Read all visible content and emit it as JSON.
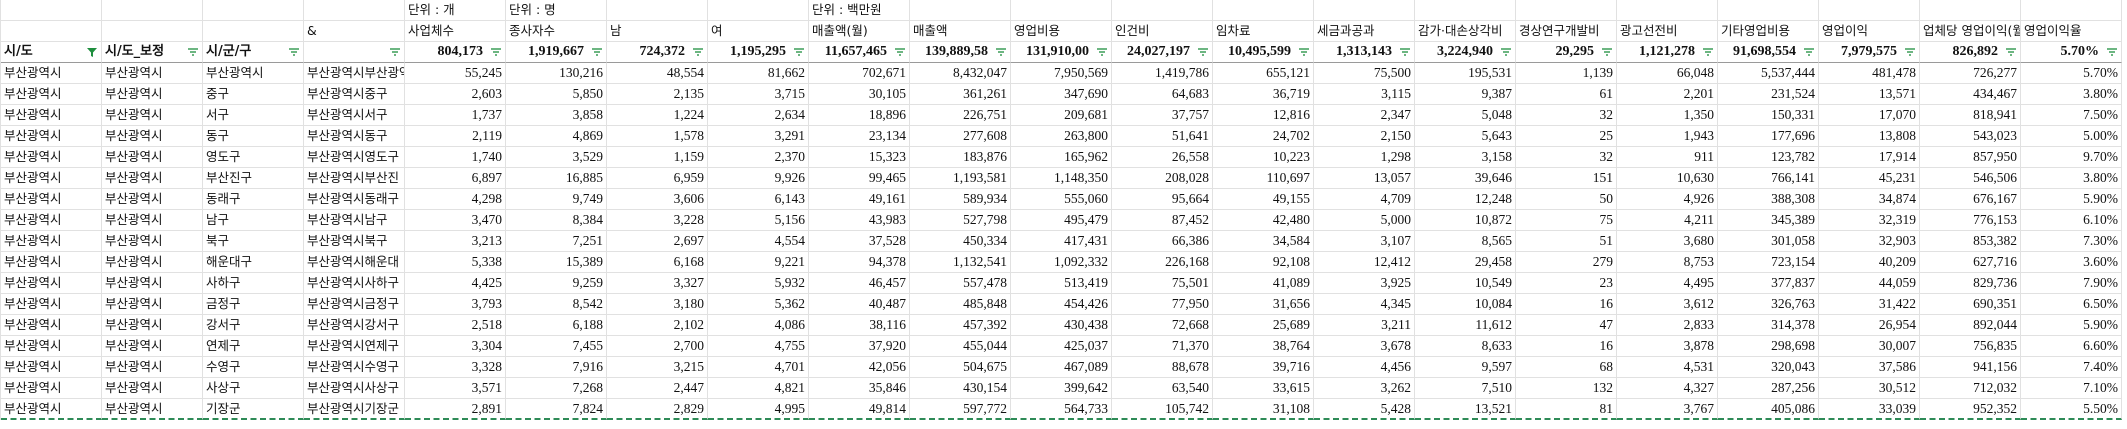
{
  "units": [
    "단위 : 개",
    "단위 : 명",
    "단위 : 백만원"
  ],
  "headers": [
    "&",
    "사업체수",
    "종사자수",
    "남",
    "여",
    "매출액(월)",
    "매출액",
    "영업비용",
    "인건비",
    "임차료",
    "세금과공과",
    "감가·대손상각비",
    "경상연구개발비",
    "광고선전비",
    "기타영업비용",
    "영업이익",
    "업체당 영업이익(월",
    "영업이익율"
  ],
  "filter_labels": [
    "시/도",
    "시/도_보정",
    "시/군/구"
  ],
  "totals": [
    "804,173",
    "1,919,667",
    "724,372",
    "1,195,295",
    "11,657,465",
    "139,889,58",
    "131,910,00",
    "24,027,197",
    "10,495,599",
    "1,313,143",
    "3,224,940",
    "29,295",
    "1,121,278",
    "91,698,554",
    "7,979,575",
    "826,892",
    "5.70%"
  ],
  "rows": [
    [
      "부산광역시",
      "부산광역시",
      "부산광역시",
      "부산광역시부산광역",
      "55,245",
      "130,216",
      "48,554",
      "81,662",
      "702,671",
      "8,432,047",
      "7,950,569",
      "1,419,786",
      "655,121",
      "75,500",
      "195,531",
      "1,139",
      "66,048",
      "5,537,444",
      "481,478",
      "726,277",
      "5.70%"
    ],
    [
      "부산광역시",
      "부산광역시",
      "중구",
      "부산광역시중구",
      "2,603",
      "5,850",
      "2,135",
      "3,715",
      "30,105",
      "361,261",
      "347,690",
      "64,683",
      "36,719",
      "3,115",
      "9,387",
      "61",
      "2,201",
      "231,524",
      "13,571",
      "434,467",
      "3.80%"
    ],
    [
      "부산광역시",
      "부산광역시",
      "서구",
      "부산광역시서구",
      "1,737",
      "3,858",
      "1,224",
      "2,634",
      "18,896",
      "226,751",
      "209,681",
      "37,757",
      "12,816",
      "2,347",
      "5,048",
      "32",
      "1,350",
      "150,331",
      "17,070",
      "818,941",
      "7.50%"
    ],
    [
      "부산광역시",
      "부산광역시",
      "동구",
      "부산광역시동구",
      "2,119",
      "4,869",
      "1,578",
      "3,291",
      "23,134",
      "277,608",
      "263,800",
      "51,641",
      "24,702",
      "2,150",
      "5,643",
      "25",
      "1,943",
      "177,696",
      "13,808",
      "543,023",
      "5.00%"
    ],
    [
      "부산광역시",
      "부산광역시",
      "영도구",
      "부산광역시영도구",
      "1,740",
      "3,529",
      "1,159",
      "2,370",
      "15,323",
      "183,876",
      "165,962",
      "26,558",
      "10,223",
      "1,298",
      "3,158",
      "32",
      "911",
      "123,782",
      "17,914",
      "857,950",
      "9.70%"
    ],
    [
      "부산광역시",
      "부산광역시",
      "부산진구",
      "부산광역시부산진",
      "6,897",
      "16,885",
      "6,959",
      "9,926",
      "99,465",
      "1,193,581",
      "1,148,350",
      "208,028",
      "110,697",
      "13,057",
      "39,646",
      "151",
      "10,630",
      "766,141",
      "45,231",
      "546,506",
      "3.80%"
    ],
    [
      "부산광역시",
      "부산광역시",
      "동래구",
      "부산광역시동래구",
      "4,298",
      "9,749",
      "3,606",
      "6,143",
      "49,161",
      "589,934",
      "555,060",
      "95,664",
      "49,155",
      "4,709",
      "12,248",
      "50",
      "4,926",
      "388,308",
      "34,874",
      "676,167",
      "5.90%"
    ],
    [
      "부산광역시",
      "부산광역시",
      "남구",
      "부산광역시남구",
      "3,470",
      "8,384",
      "3,228",
      "5,156",
      "43,983",
      "527,798",
      "495,479",
      "87,452",
      "42,480",
      "5,000",
      "10,872",
      "75",
      "4,211",
      "345,389",
      "32,319",
      "776,153",
      "6.10%"
    ],
    [
      "부산광역시",
      "부산광역시",
      "북구",
      "부산광역시북구",
      "3,213",
      "7,251",
      "2,697",
      "4,554",
      "37,528",
      "450,334",
      "417,431",
      "66,386",
      "34,584",
      "3,107",
      "8,565",
      "51",
      "3,680",
      "301,058",
      "32,903",
      "853,382",
      "7.30%"
    ],
    [
      "부산광역시",
      "부산광역시",
      "해운대구",
      "부산광역시해운대",
      "5,338",
      "15,389",
      "6,168",
      "9,221",
      "94,378",
      "1,132,541",
      "1,092,332",
      "226,168",
      "92,108",
      "12,412",
      "29,458",
      "279",
      "8,753",
      "723,154",
      "40,209",
      "627,716",
      "3.60%"
    ],
    [
      "부산광역시",
      "부산광역시",
      "사하구",
      "부산광역시사하구",
      "4,425",
      "9,259",
      "3,327",
      "5,932",
      "46,457",
      "557,478",
      "513,419",
      "75,501",
      "41,089",
      "3,925",
      "10,549",
      "23",
      "4,495",
      "377,837",
      "44,059",
      "829,736",
      "7.90%"
    ],
    [
      "부산광역시",
      "부산광역시",
      "금정구",
      "부산광역시금정구",
      "3,793",
      "8,542",
      "3,180",
      "5,362",
      "40,487",
      "485,848",
      "454,426",
      "77,950",
      "31,656",
      "4,345",
      "10,084",
      "16",
      "3,612",
      "326,763",
      "31,422",
      "690,351",
      "6.50%"
    ],
    [
      "부산광역시",
      "부산광역시",
      "강서구",
      "부산광역시강서구",
      "2,518",
      "6,188",
      "2,102",
      "4,086",
      "38,116",
      "457,392",
      "430,438",
      "72,668",
      "25,689",
      "3,211",
      "11,612",
      "47",
      "2,833",
      "314,378",
      "26,954",
      "892,044",
      "5.90%"
    ],
    [
      "부산광역시",
      "부산광역시",
      "연제구",
      "부산광역시연제구",
      "3,304",
      "7,455",
      "2,700",
      "4,755",
      "37,920",
      "455,044",
      "425,037",
      "71,370",
      "38,764",
      "3,678",
      "8,633",
      "16",
      "3,878",
      "298,698",
      "30,007",
      "756,835",
      "6.60%"
    ],
    [
      "부산광역시",
      "부산광역시",
      "수영구",
      "부산광역시수영구",
      "3,328",
      "7,916",
      "3,215",
      "4,701",
      "42,056",
      "504,675",
      "467,089",
      "88,678",
      "39,716",
      "4,456",
      "9,597",
      "68",
      "4,531",
      "320,043",
      "37,586",
      "941,156",
      "7.40%"
    ],
    [
      "부산광역시",
      "부산광역시",
      "사상구",
      "부산광역시사상구",
      "3,571",
      "7,268",
      "2,447",
      "4,821",
      "35,846",
      "430,154",
      "399,642",
      "63,540",
      "33,615",
      "3,262",
      "7,510",
      "132",
      "4,327",
      "287,256",
      "30,512",
      "712,032",
      "7.10%"
    ],
    [
      "부산광역시",
      "부산광역시",
      "기장군",
      "부산광역시기장군",
      "2,891",
      "7,824",
      "2,829",
      "4,995",
      "49,814",
      "597,772",
      "564,733",
      "105,742",
      "31,108",
      "5,428",
      "13,521",
      "81",
      "3,767",
      "405,086",
      "33,039",
      "952,352",
      "5.50%"
    ]
  ]
}
